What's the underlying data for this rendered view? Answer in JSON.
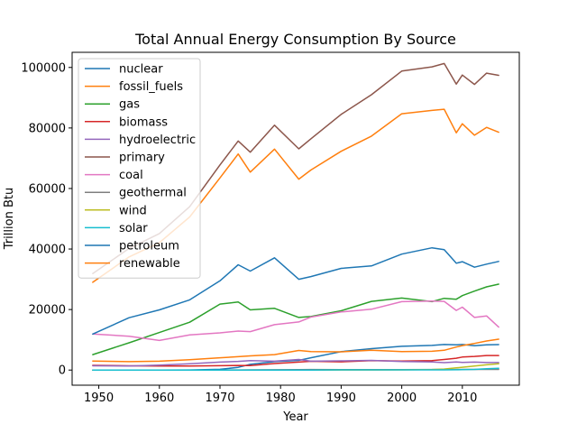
{
  "chart_data": {
    "type": "line",
    "title": "Total Annual Energy Consumption By Source",
    "xlabel": "Year",
    "ylabel": "Trillion Btu",
    "xlim": [
      1945.6,
      2019.4
    ],
    "ylim": [
      -5000,
      105000
    ],
    "xticks": [
      1950,
      1960,
      1970,
      1980,
      1990,
      2000,
      2010
    ],
    "yticks": [
      0,
      20000,
      40000,
      60000,
      80000,
      100000
    ],
    "grid": false,
    "legend_position": "upper-left",
    "anchor_years": [
      1949,
      1955,
      1960,
      1965,
      1970,
      1973,
      1975,
      1979,
      1983,
      1985,
      1990,
      1995,
      2000,
      2005,
      2007,
      2009,
      2010,
      2012,
      2014,
      2016
    ],
    "series": [
      {
        "name": "nuclear",
        "color": "#1f77b4",
        "values": [
          0,
          0,
          6,
          43,
          239,
          910,
          1900,
          2776,
          3203,
          4076,
          6104,
          7075,
          7862,
          8161,
          8458,
          8355,
          8434,
          8062,
          8338,
          8427
        ]
      },
      {
        "name": "fossil_fuels",
        "color": "#ff7f0e",
        "values": [
          29000,
          37400,
          42100,
          50600,
          63500,
          71400,
          65400,
          73000,
          63100,
          66100,
          72300,
          77300,
          84700,
          85800,
          86200,
          78400,
          81400,
          77600,
          80200,
          78600
        ]
      },
      {
        "name": "gas",
        "color": "#2ca02c",
        "values": [
          5100,
          9000,
          12400,
          15800,
          21800,
          22500,
          19900,
          20400,
          17400,
          17700,
          19600,
          22700,
          23800,
          22600,
          23700,
          23400,
          24600,
          26100,
          27500,
          28400
        ]
      },
      {
        "name": "biomass",
        "color": "#d62728",
        "values": [
          1550,
          1420,
          1320,
          1340,
          1430,
          1530,
          1500,
          2150,
          2620,
          2900,
          2730,
          3100,
          3000,
          3100,
          3500,
          3900,
          4300,
          4500,
          4800,
          4800
        ]
      },
      {
        "name": "hydroelectric",
        "color": "#9467bd",
        "values": [
          1420,
          1360,
          1610,
          2060,
          2630,
          2860,
          3150,
          2930,
          3500,
          2940,
          3050,
          3200,
          2800,
          2700,
          2450,
          2670,
          2540,
          2630,
          2470,
          2480
        ]
      },
      {
        "name": "primary",
        "color": "#8c564b",
        "values": [
          31900,
          40200,
          45100,
          54000,
          67800,
          75700,
          72000,
          80900,
          73100,
          76400,
          84500,
          91000,
          98800,
          100200,
          101300,
          94500,
          97500,
          94400,
          98100,
          97400
        ]
      },
      {
        "name": "coal",
        "color": "#e377c2",
        "values": [
          11900,
          11200,
          9800,
          11600,
          12300,
          12900,
          12700,
          15000,
          15900,
          17500,
          19200,
          20100,
          22600,
          22800,
          22700,
          19700,
          20800,
          17400,
          17900,
          14200
        ]
      },
      {
        "name": "geothermal",
        "color": "#7f7f7f",
        "values": [
          0,
          0,
          1,
          4,
          11,
          43,
          70,
          110,
          130,
          200,
          170,
          150,
          160,
          180,
          180,
          200,
          210,
          210,
          210,
          210
        ]
      },
      {
        "name": "wind",
        "color": "#bcbd22",
        "values": [
          0,
          0,
          0,
          0,
          0,
          0,
          0,
          0,
          0,
          0,
          29,
          33,
          57,
          178,
          341,
          721,
          923,
          1340,
          1728,
          2096
        ]
      },
      {
        "name": "solar",
        "color": "#17becf",
        "values": [
          0,
          0,
          0,
          0,
          0,
          0,
          0,
          0,
          0,
          0,
          60,
          69,
          63,
          58,
          76,
          98,
          126,
          227,
          427,
          587
        ]
      },
      {
        "name": "petroleum",
        "color": "#1f77b4",
        "values": [
          11900,
          17300,
          19900,
          23200,
          29500,
          34800,
          32700,
          37100,
          30000,
          30900,
          33600,
          34400,
          38300,
          40400,
          39800,
          35300,
          35800,
          34000,
          35000,
          35900
        ]
      },
      {
        "name": "renewable",
        "color": "#ff7f0e",
        "values": [
          2970,
          2780,
          2930,
          3400,
          4070,
          4430,
          4690,
          5120,
          6470,
          6120,
          6040,
          6540,
          6110,
          6220,
          6550,
          7600,
          8100,
          8800,
          9600,
          10200
        ]
      }
    ]
  }
}
